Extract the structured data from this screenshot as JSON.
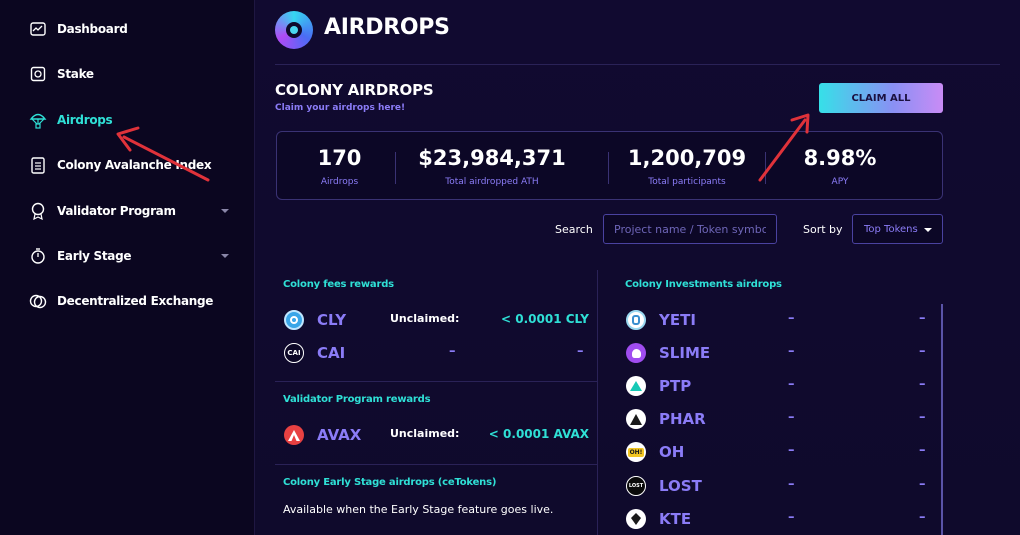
{
  "sidebar": {
    "items": [
      {
        "label": "Dashboard",
        "icon": "dashboard-icon"
      },
      {
        "label": "Stake",
        "icon": "stake-icon"
      },
      {
        "label": "Airdrops",
        "icon": "airdrop-icon",
        "active": true
      },
      {
        "label": "Colony Avalanche Index",
        "icon": "index-icon"
      },
      {
        "label": "Validator Program",
        "icon": "validator-icon",
        "dropdown": true
      },
      {
        "label": "Early Stage",
        "icon": "timer-icon",
        "dropdown": true
      },
      {
        "label": "Decentralized Exchange",
        "icon": "exchange-icon"
      }
    ]
  },
  "header": {
    "title": "AIRDROPS"
  },
  "section": {
    "title": "COLONY AIRDROPS",
    "subtitle": "Claim your airdrops here!",
    "claim_all_label": "CLAIM ALL"
  },
  "stats": [
    {
      "value": "170",
      "label": "Airdrops"
    },
    {
      "value": "$23,984,371",
      "label": "Total airdropped ATH"
    },
    {
      "value": "1,200,709",
      "label": "Total participants"
    },
    {
      "value": "8.98%",
      "label": "APY"
    }
  ],
  "filters": {
    "search_label": "Search",
    "search_placeholder": "Project name / Token symbol",
    "sort_label": "Sort by",
    "sort_value": "Top Tokens"
  },
  "fees_rewards": {
    "title": "Colony fees rewards",
    "tokens": [
      {
        "symbol": "CLY",
        "unclaimed_label": "Unclaimed:",
        "amount": "< 0.0001 CLY"
      },
      {
        "symbol": "CAI",
        "col1": "–",
        "col2": "–"
      }
    ]
  },
  "validator_rewards": {
    "title": "Validator Program rewards",
    "tokens": [
      {
        "symbol": "AVAX",
        "unclaimed_label": "Unclaimed:",
        "amount": "< 0.0001 AVAX"
      }
    ]
  },
  "early_stage": {
    "title": "Colony Early Stage airdrops (ceTokens)",
    "note": "Available when the Early Stage feature goes live."
  },
  "investments": {
    "title": "Colony Investments airdrops",
    "tokens": [
      {
        "symbol": "YETI",
        "col1": "–",
        "col2": "–"
      },
      {
        "symbol": "SLIME",
        "col1": "–",
        "col2": "–"
      },
      {
        "symbol": "PTP",
        "col1": "–",
        "col2": "–"
      },
      {
        "symbol": "PHAR",
        "col1": "–",
        "col2": "–"
      },
      {
        "symbol": "OH",
        "col1": "–",
        "col2": "–"
      },
      {
        "symbol": "LOST",
        "col1": "–",
        "col2": "–"
      },
      {
        "symbol": "KTE",
        "col1": "–",
        "col2": "–"
      }
    ]
  },
  "icon_texts": {
    "cai": "CAI",
    "oh": "OH!",
    "lost": "LOST"
  },
  "colors": {
    "accent": "#2fe0d6",
    "muted": "#8b7cf7",
    "annotation_arrow": "#e0323a"
  }
}
